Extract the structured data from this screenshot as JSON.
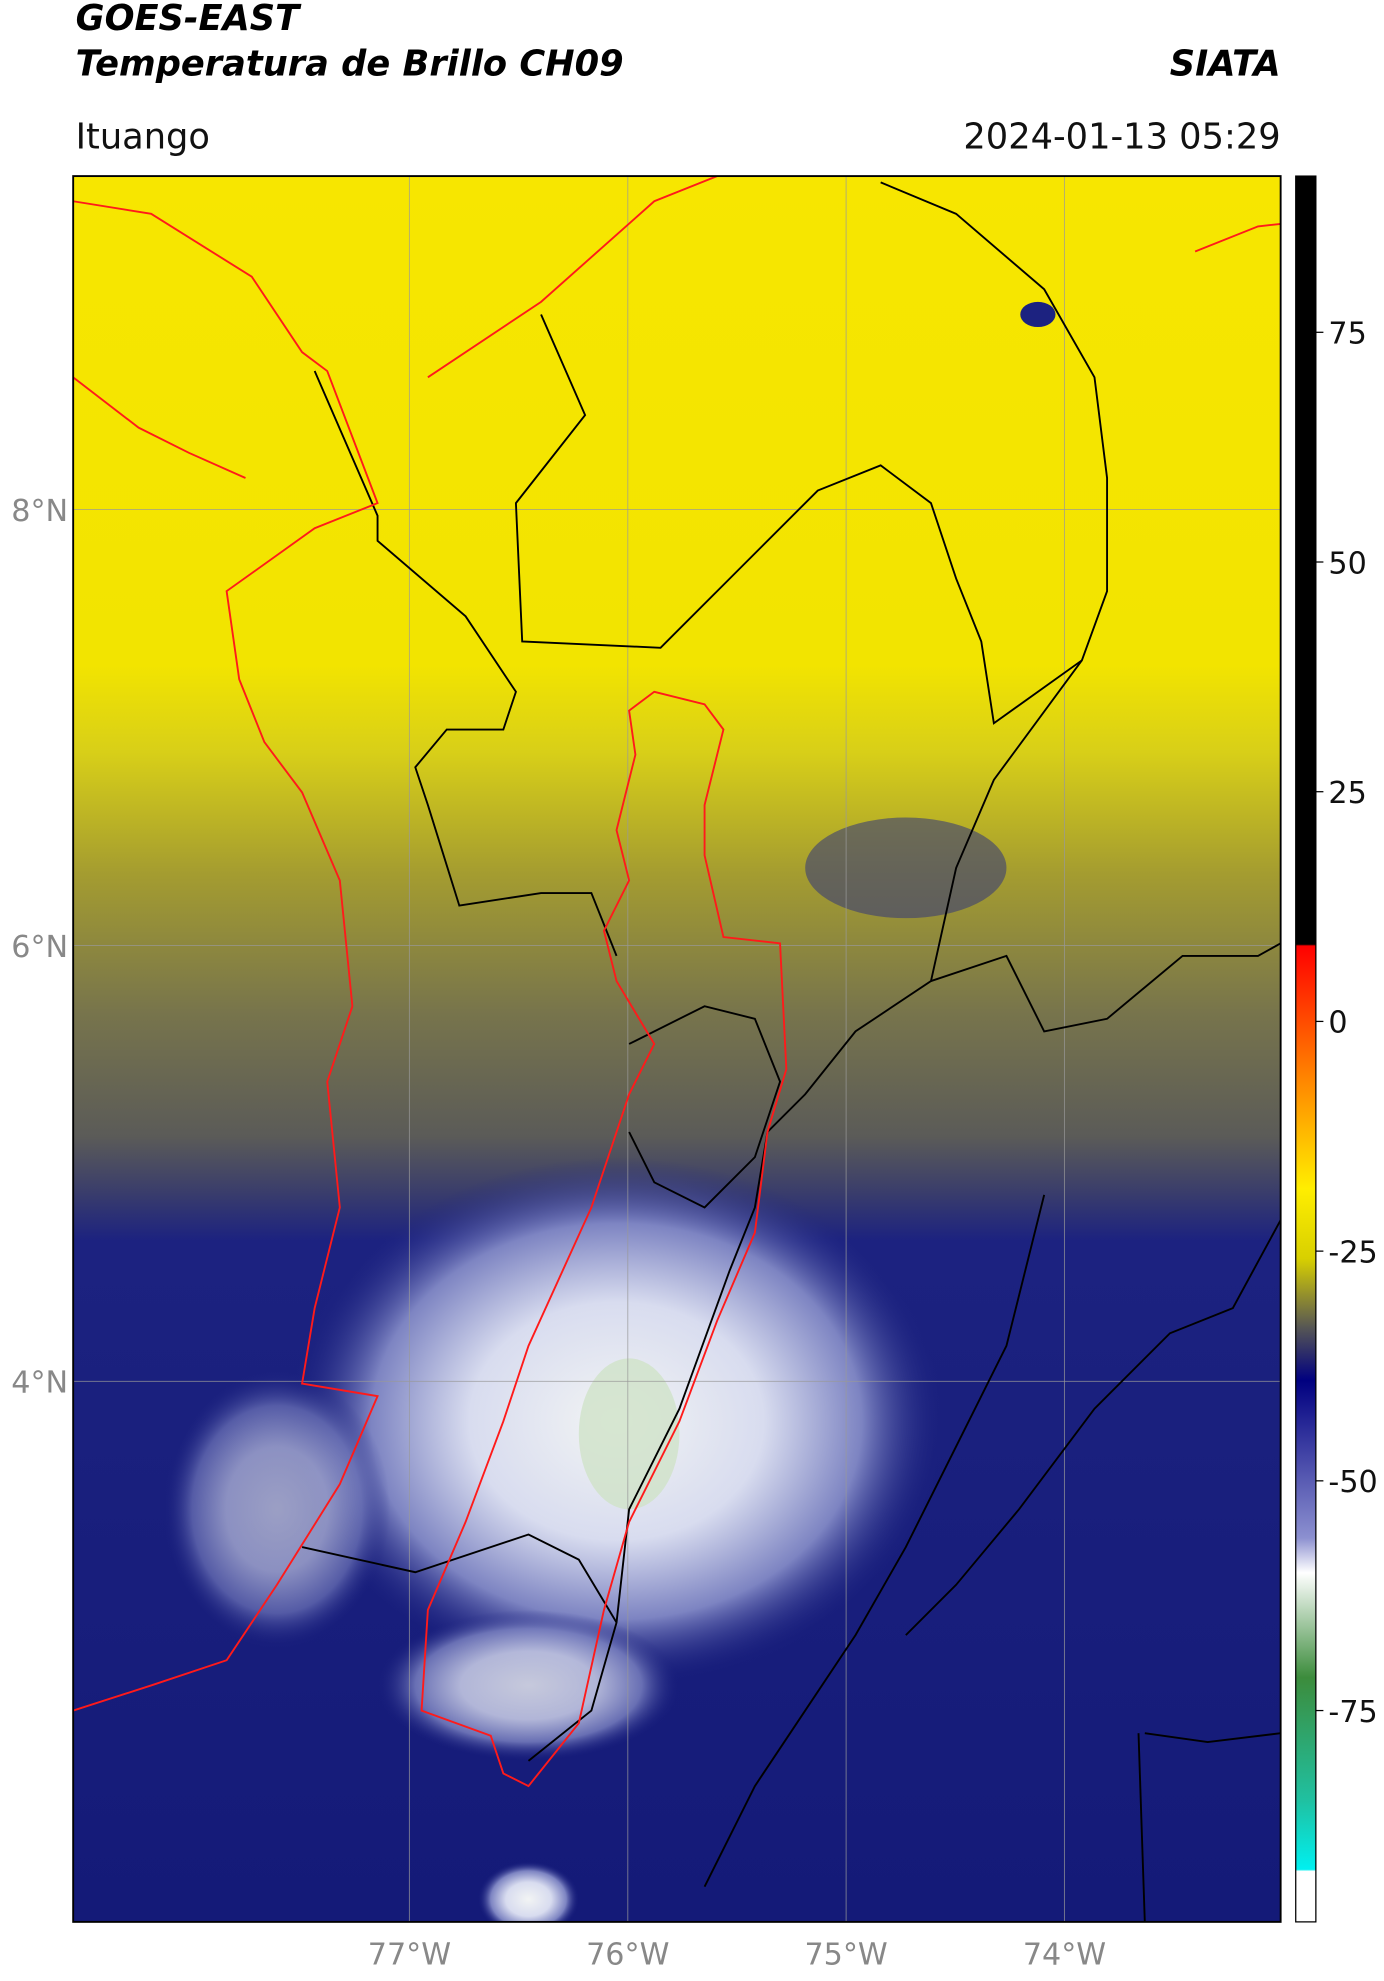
{
  "header": {
    "title": "GOES-EAST",
    "subtitle": "Temperatura de Brillo CH09",
    "brand": "SIATA",
    "location": "Ituango",
    "datetime": "2024-01-13 05:29"
  },
  "map": {
    "lon_range": [
      -78.54,
      -73.01
    ],
    "lat_range": [
      1.52,
      9.53
    ],
    "lat_ticks": [
      {
        "value": 8,
        "label": "8°N"
      },
      {
        "value": 6,
        "label": "6°N"
      },
      {
        "value": 4,
        "label": "4°N"
      }
    ],
    "lon_ticks": [
      {
        "value": -77,
        "label": "77°W"
      },
      {
        "value": -76,
        "label": "76°W"
      },
      {
        "value": -75,
        "label": "75°W"
      },
      {
        "value": -74,
        "label": "74°W"
      }
    ],
    "colorbar": {
      "lim": [
        -98,
        92
      ],
      "ticks": [
        75,
        50,
        25,
        0,
        -25,
        -50,
        -75
      ]
    }
  }
}
